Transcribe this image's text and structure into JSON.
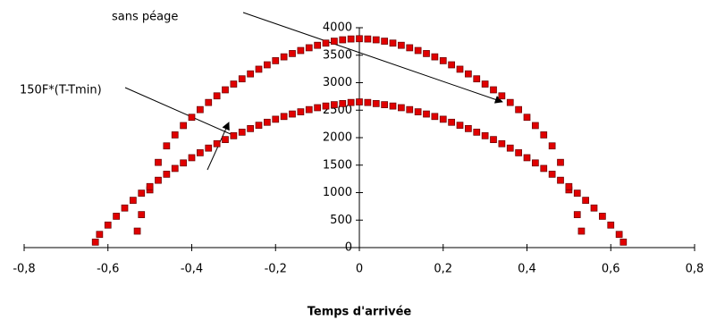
{
  "chart_data": {
    "type": "scatter",
    "xlabel": "Temps d'arrivée",
    "annotations": [
      {
        "text": "sans péage"
      },
      {
        "text": "150F*(T-Tmin)"
      }
    ],
    "xlim": [
      -0.8,
      0.8
    ],
    "xticks": [
      {
        "value": -0.8,
        "label": "-0,8"
      },
      {
        "value": -0.6,
        "label": "-0,6"
      },
      {
        "value": -0.4,
        "label": "-0,4"
      },
      {
        "value": -0.2,
        "label": "-0,2"
      },
      0,
      {
        "value": 0.2,
        "label": "0,2"
      },
      {
        "value": 0.4,
        "label": "0,4"
      },
      {
        "value": 0.6,
        "label": "0,6"
      },
      {
        "value": 0.8,
        "label": "0,8"
      }
    ],
    "ylim": [
      0,
      4000
    ],
    "yticks": [
      0,
      500,
      1000,
      1500,
      2000,
      2500,
      3000,
      3500,
      4000
    ],
    "series": [
      {
        "color": "#e00000",
        "x": [
          -0.53,
          -0.52,
          -0.5,
          -0.48,
          -0.46,
          -0.44,
          -0.42,
          -0.4,
          -0.38,
          -0.36,
          -0.34,
          -0.32,
          -0.3,
          -0.28,
          -0.26,
          -0.24,
          -0.22,
          -0.2,
          -0.18,
          -0.16,
          -0.14,
          -0.12,
          -0.1,
          -0.08,
          -0.06,
          -0.04,
          -0.02,
          0,
          0.02,
          0.04,
          0.06,
          0.08,
          0.1,
          0.12,
          0.14,
          0.16,
          0.18,
          0.2,
          0.22,
          0.24,
          0.26,
          0.28,
          0.3,
          0.32,
          0.34,
          0.36,
          0.38,
          0.4,
          0.42,
          0.44,
          0.46,
          0.48,
          0.5,
          0.52,
          0.53
        ],
        "values": [
          300,
          600,
          1050,
          1550,
          1850,
          2050,
          2220,
          2370,
          2510,
          2640,
          2760,
          2870,
          2975,
          3070,
          3160,
          3245,
          3325,
          3400,
          3470,
          3530,
          3585,
          3635,
          3680,
          3720,
          3755,
          3780,
          3795,
          3800,
          3795,
          3780,
          3755,
          3720,
          3680,
          3635,
          3585,
          3530,
          3470,
          3400,
          3325,
          3245,
          3160,
          3070,
          2975,
          2870,
          2760,
          2640,
          2510,
          2370,
          2220,
          2050,
          1850,
          1550,
          1050,
          600,
          300
        ]
      },
      {
        "color": "#e00000",
        "x": [
          -0.63,
          -0.62,
          -0.6,
          -0.58,
          -0.56,
          -0.54,
          -0.52,
          -0.5,
          -0.48,
          -0.46,
          -0.44,
          -0.42,
          -0.4,
          -0.38,
          -0.36,
          -0.34,
          -0.32,
          -0.3,
          -0.28,
          -0.26,
          -0.24,
          -0.22,
          -0.2,
          -0.18,
          -0.16,
          -0.14,
          -0.12,
          -0.1,
          -0.08,
          -0.06,
          -0.04,
          -0.02,
          0,
          0.02,
          0.04,
          0.06,
          0.08,
          0.1,
          0.12,
          0.14,
          0.16,
          0.18,
          0.2,
          0.22,
          0.24,
          0.26,
          0.28,
          0.3,
          0.32,
          0.34,
          0.36,
          0.38,
          0.4,
          0.42,
          0.44,
          0.46,
          0.48,
          0.5,
          0.52,
          0.54,
          0.56,
          0.58,
          0.6,
          0.62,
          0.63
        ],
        "values": [
          100,
          240,
          410,
          570,
          720,
          860,
          990,
          1110,
          1225,
          1335,
          1440,
          1540,
          1635,
          1725,
          1810,
          1890,
          1965,
          2035,
          2100,
          2165,
          2225,
          2280,
          2335,
          2385,
          2430,
          2470,
          2510,
          2545,
          2575,
          2600,
          2620,
          2640,
          2650,
          2640,
          2620,
          2600,
          2575,
          2545,
          2510,
          2470,
          2430,
          2385,
          2335,
          2280,
          2225,
          2165,
          2100,
          2035,
          1965,
          1890,
          1810,
          1725,
          1635,
          1540,
          1440,
          1335,
          1225,
          1110,
          990,
          860,
          720,
          570,
          410,
          240,
          100
        ]
      }
    ]
  }
}
